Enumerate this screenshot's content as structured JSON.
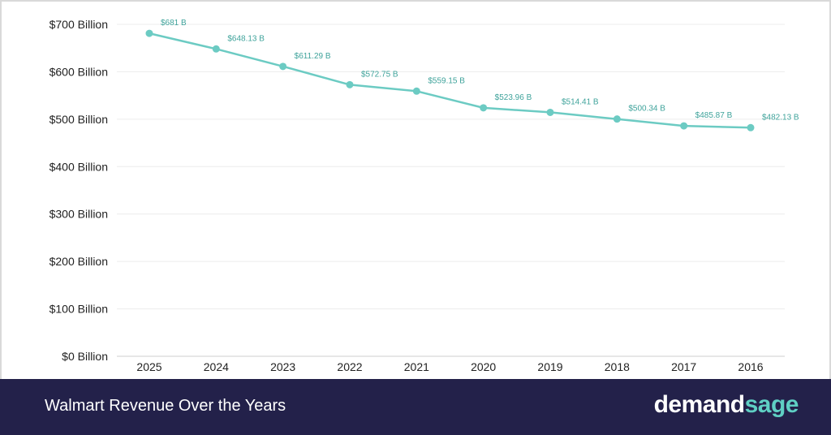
{
  "chart_data": {
    "type": "line",
    "categories": [
      "2025",
      "2024",
      "2023",
      "2022",
      "2021",
      "2020",
      "2019",
      "2018",
      "2017",
      "2016"
    ],
    "values": [
      681,
      648.13,
      611.29,
      572.75,
      559.15,
      523.96,
      514.41,
      500.34,
      485.87,
      482.13
    ],
    "data_labels": [
      "$681 B",
      "$648.13 B",
      "$611.29 B",
      "$572.75 B",
      "$559.15 B",
      "$523.96 B",
      "$514.41 B",
      "$500.34 B",
      "$485.87 B",
      "$482.13 B"
    ],
    "y_ticks": [
      0,
      100,
      200,
      300,
      400,
      500,
      600,
      700
    ],
    "y_tick_labels": [
      "$0 Billion",
      "$100 Billion",
      "$200 Billion",
      "$300 Billion",
      "$400 Billion",
      "$500 Billion",
      "$600 Billion",
      "$700 Billion"
    ],
    "ylim": [
      0,
      700
    ],
    "grid": true,
    "line_color": "#6ccbc3"
  },
  "footer": {
    "title": "Walmart Revenue Over the Years",
    "brand_part1": "demand",
    "brand_part2": "sage"
  },
  "colors": {
    "footer_bg": "#23214a",
    "accent": "#5fcfc4"
  }
}
